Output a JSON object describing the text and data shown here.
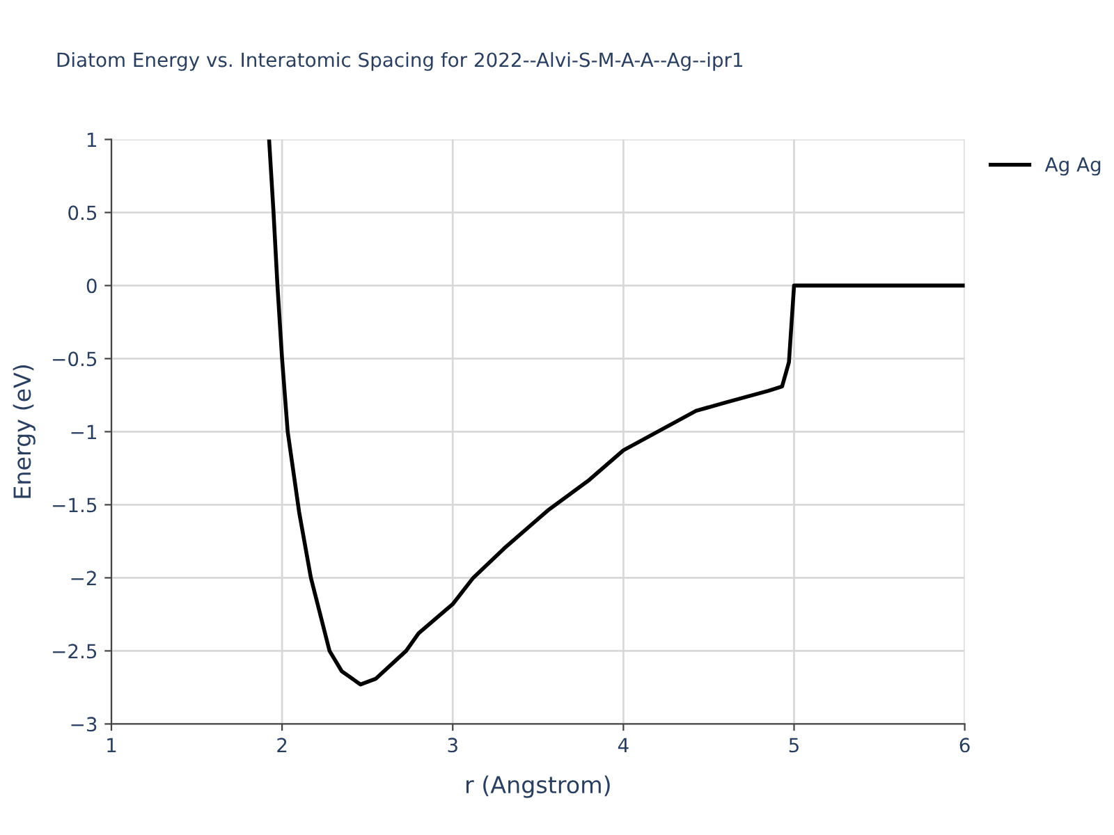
{
  "chart_data": {
    "type": "line",
    "title": "Diatom Energy vs. Interatomic Spacing for 2022--Alvi-S-M-A-A--Ag--ipr1",
    "xlabel": "r (Angstrom)",
    "ylabel": "Energy (eV)",
    "series": [
      {
        "name": "Ag Ag",
        "color": "#000000",
        "x": [
          1.924,
          1.95,
          1.973,
          2.0,
          2.033,
          2.1,
          2.169,
          2.278,
          2.35,
          2.46,
          2.55,
          2.727,
          2.8,
          3.0,
          3.12,
          3.3,
          3.556,
          3.8,
          4.0,
          4.426,
          4.6,
          4.85,
          4.93,
          4.97,
          5.0,
          6.0
        ],
        "values": [
          1,
          0.5,
          0,
          -0.5,
          -1,
          -1.55,
          -2,
          -2.5,
          -2.64,
          -2.73,
          -2.69,
          -2.5,
          -2.38,
          -2.18,
          -2,
          -1.8,
          -1.54,
          -1.33,
          -1.127,
          -0.857,
          -0.8,
          -0.72,
          -0.69,
          -0.524,
          0,
          0
        ]
      }
    ],
    "xlim": [
      1,
      6
    ],
    "ylim": [
      -3,
      1
    ],
    "xticks": [
      1,
      2,
      3,
      4,
      5,
      6
    ],
    "yticks": [
      -3,
      -2.5,
      -2,
      -1.5,
      -1,
      -0.5,
      0,
      0.5,
      1
    ],
    "grid": true,
    "legend": "top right",
    "marker": "none",
    "line_style": "solid"
  }
}
